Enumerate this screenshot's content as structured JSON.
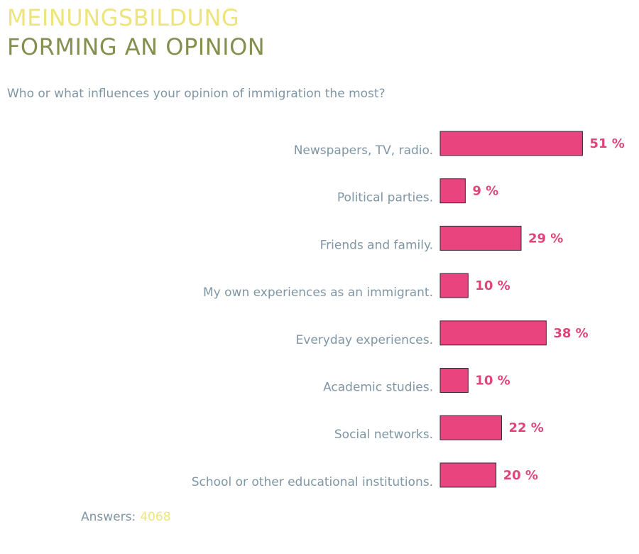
{
  "header": {
    "title_de": "MEINUNGSBILDUNG",
    "title_en": "FORMING AN OPINION",
    "question": "Who or what influences your opinion of immigration the most?"
  },
  "footer": {
    "answers_label": "Answers:",
    "answers_count": "4068"
  },
  "colors": {
    "bar": "#e9447e",
    "value_text": "#e0447b",
    "label_text": "#7f96a4",
    "title_de": "#ede57c",
    "title_en": "#868f4e"
  },
  "chart_data": {
    "type": "bar",
    "orientation": "horizontal",
    "title": "Who or what influences your opinion of immigration the most?",
    "categories": [
      "Newspapers, TV, radio.",
      "Political parties.",
      "Friends and family.",
      "My own experiences as an immigrant.",
      "Everyday experiences.",
      "Academic studies.",
      "Social networks.",
      "School or other educational institutions."
    ],
    "values": [
      51,
      9,
      29,
      10,
      38,
      10,
      22,
      20
    ],
    "unit": "%",
    "xlim": [
      0,
      100
    ],
    "grid": false,
    "legend": "none"
  }
}
